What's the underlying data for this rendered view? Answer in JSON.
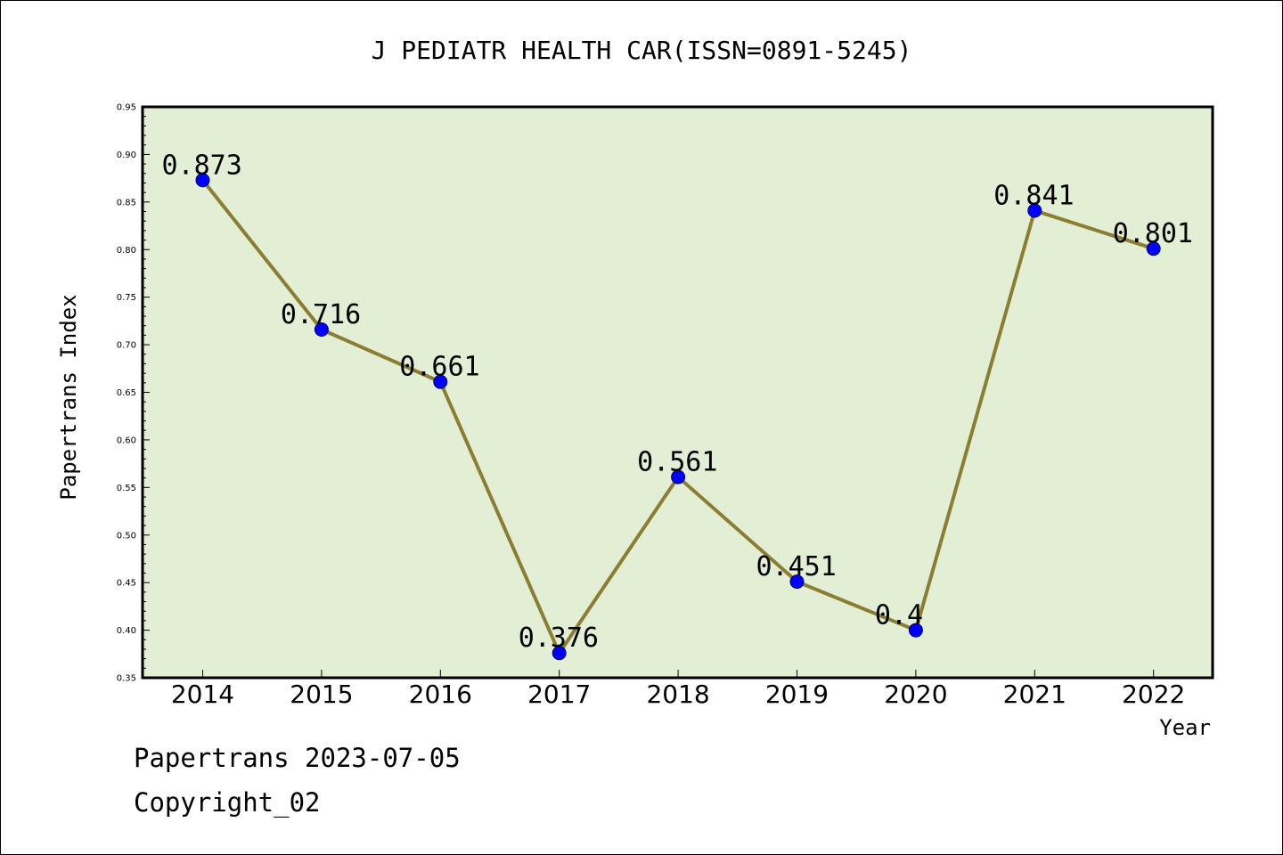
{
  "chart_data": {
    "type": "line",
    "title": "J PEDIATR HEALTH CAR(ISSN=0891-5245)",
    "xlabel": "Year",
    "ylabel": "Papertrans Index",
    "categories": [
      "2014",
      "2015",
      "2016",
      "2017",
      "2018",
      "2019",
      "2020",
      "2021",
      "2022"
    ],
    "values": [
      0.873,
      0.716,
      0.661,
      0.376,
      0.561,
      0.451,
      0.4,
      0.841,
      0.801
    ],
    "data_labels": [
      "0.873",
      "0.716",
      "0.661",
      "0.376",
      "0.561",
      "0.451",
      "0.4",
      "0.841",
      "0.801"
    ],
    "ylim": [
      0.35,
      0.95
    ],
    "yticks": [
      "0.35",
      "0.40",
      "0.45",
      "0.50",
      "0.55",
      "0.60",
      "0.65",
      "0.70",
      "0.75",
      "0.80",
      "0.85",
      "0.90",
      "0.95"
    ],
    "grid": false,
    "colors": {
      "plot_background": "#e2efd5",
      "line": "#8b7d32",
      "marker": "#0000ff"
    }
  },
  "footer": {
    "source": "Papertrans 2023-07-05",
    "copyright": "Copyright_02"
  }
}
